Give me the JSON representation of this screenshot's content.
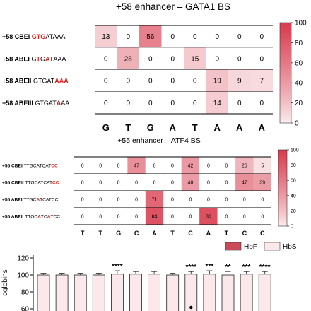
{
  "chart_data": [
    {
      "type": "heatmap",
      "title": "+58 enhancer – GATA1 BS",
      "rows": [
        {
          "editor": "+58 CBEI",
          "seq": [
            {
              "t": "GTG",
              "red": true
            },
            {
              "t": "ATAAA",
              "red": false
            }
          ],
          "values": [
            13,
            0,
            56,
            0,
            0,
            0,
            0,
            0
          ]
        },
        {
          "editor": "+58 ABEI",
          "seq": [
            {
              "t": "G",
              "red": false
            },
            {
              "t": "T",
              "red": true
            },
            {
              "t": "G",
              "red": false
            },
            {
              "t": "A",
              "red": true
            },
            {
              "t": "T",
              "red": true
            },
            {
              "t": "AAA",
              "red": false
            }
          ],
          "values": [
            0,
            28,
            0,
            0,
            15,
            0,
            0,
            0
          ]
        },
        {
          "editor": "+58 ABEII",
          "seq": [
            {
              "t": "GTGAT",
              "red": false
            },
            {
              "t": "AAA",
              "red": true
            }
          ],
          "values": [
            0,
            0,
            0,
            0,
            0,
            19,
            9,
            7
          ]
        },
        {
          "editor": "+58 ABEIII",
          "seq": [
            {
              "t": "GTGAT",
              "red": false
            },
            {
              "t": "A",
              "red": true
            },
            {
              "t": "AA",
              "red": false
            }
          ],
          "values": [
            0,
            0,
            0,
            0,
            0,
            14,
            0,
            0
          ]
        }
      ],
      "columns": [
        "G",
        "T",
        "G",
        "A",
        "T",
        "A",
        "A",
        "A"
      ],
      "colorbar": {
        "min": 0,
        "max": 100,
        "ticks": [
          0,
          20,
          40,
          60,
          80,
          100
        ],
        "low_color": "#fbeef0",
        "high_color": "#d83a4c"
      }
    },
    {
      "type": "heatmap",
      "title": "+55 enhancer – ATF4 BS",
      "rows": [
        {
          "editor": "+55 CBEI",
          "seq": [
            {
              "t": "TTGCATCAT",
              "red": false
            },
            {
              "t": "CC",
              "red": true
            }
          ],
          "values": [
            0,
            0,
            0,
            47,
            0,
            0,
            42,
            0,
            0,
            26,
            5
          ]
        },
        {
          "editor": "+55 CBEII",
          "seq": [
            {
              "t": "TTGCATCAT",
              "red": false
            },
            {
              "t": "CC",
              "red": true
            }
          ],
          "values": [
            0,
            0,
            0,
            0,
            0,
            0,
            40,
            0,
            0,
            47,
            39
          ]
        },
        {
          "editor": "+55 ABEI",
          "seq": [
            {
              "t": "TTGC",
              "red": false
            },
            {
              "t": "A",
              "red": true
            },
            {
              "t": "TCATCC",
              "red": false
            }
          ],
          "values": [
            0,
            0,
            0,
            0,
            71,
            0,
            0,
            0,
            0,
            0,
            0
          ]
        },
        {
          "editor": "+55 ABEII",
          "seq": [
            {
              "t": "TTGC",
              "red": false
            },
            {
              "t": "A",
              "red": true
            },
            {
              "t": "TC",
              "red": false
            },
            {
              "t": "A",
              "red": true
            },
            {
              "t": "TCC",
              "red": false
            }
          ],
          "values": [
            0,
            0,
            0,
            0,
            84,
            0,
            0,
            86,
            0,
            0,
            0
          ]
        }
      ],
      "columns": [
        "T",
        "T",
        "G",
        "C",
        "A",
        "T",
        "C",
        "A",
        "T",
        "C",
        "C"
      ],
      "colorbar": {
        "min": 0,
        "max": 100,
        "ticks": [
          0,
          20,
          40,
          60,
          80,
          100
        ],
        "low_color": "#fbeef0",
        "high_color": "#d83a4c"
      }
    },
    {
      "type": "bar",
      "ylabel_fragment": "oglobins",
      "yticks": [
        60,
        80,
        100,
        120
      ],
      "ylim": [
        55,
        125
      ],
      "legend": [
        {
          "name": "HbF",
          "color": "#c94b5a"
        },
        {
          "name": "HbS",
          "color": "#fbe8ea"
        }
      ],
      "legend_position": "top-right",
      "values": [
        100,
        100,
        100,
        100,
        101,
        101,
        101,
        100,
        101,
        101,
        100,
        101,
        101
      ],
      "errors": [
        2,
        2,
        2,
        2,
        4,
        3,
        3,
        2,
        3,
        4,
        4,
        3,
        3
      ],
      "significance": [
        "",
        "",
        "",
        "",
        "****",
        "",
        "",
        "",
        "****",
        "***",
        "**",
        "***",
        "****"
      ],
      "bar_color": "#fbe8ea"
    }
  ]
}
